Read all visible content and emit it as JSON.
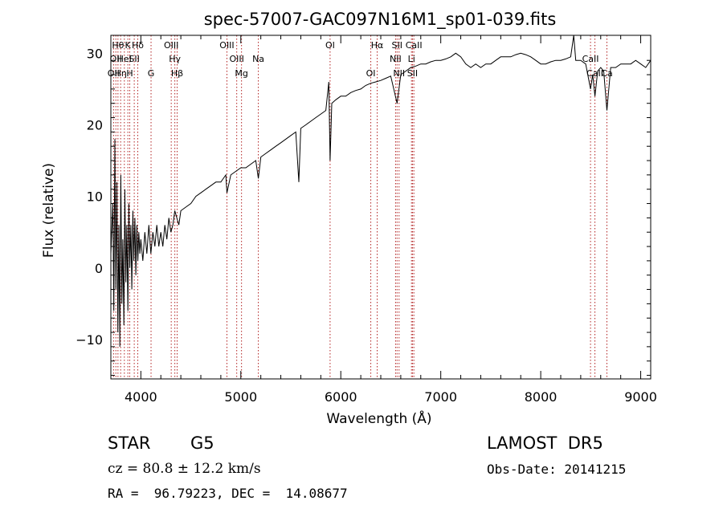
{
  "chart_data": {
    "type": "line",
    "title": "spec-57007-GAC097N16M1_sp01-039.fits",
    "xlabel": "Wavelength (Å)",
    "ylabel": "Flux (relative)",
    "xlim": [
      3700,
      9100
    ],
    "ylim": [
      -15.5,
      32.5
    ],
    "xticks": [
      4000,
      5000,
      6000,
      7000,
      8000,
      9000
    ],
    "yticks": [
      -10,
      0,
      10,
      20,
      30
    ],
    "grid": false,
    "colors": {
      "line": "#000000",
      "marker": "#b22222"
    },
    "series": [
      {
        "points": [
          [
            3700,
            2
          ],
          [
            3720,
            9
          ],
          [
            3730,
            -6
          ],
          [
            3740,
            18
          ],
          [
            3750,
            -3
          ],
          [
            3760,
            12
          ],
          [
            3770,
            -9
          ],
          [
            3780,
            6
          ],
          [
            3790,
            -11
          ],
          [
            3800,
            13
          ],
          [
            3810,
            -5
          ],
          [
            3820,
            4
          ],
          [
            3830,
            -8
          ],
          [
            3840,
            11
          ],
          [
            3850,
            -2
          ],
          [
            3860,
            6
          ],
          [
            3870,
            -6
          ],
          [
            3880,
            9
          ],
          [
            3890,
            0
          ],
          [
            3900,
            6
          ],
          [
            3910,
            -3
          ],
          [
            3920,
            8
          ],
          [
            3930,
            1
          ],
          [
            3940,
            7
          ],
          [
            3950,
            -1
          ],
          [
            3960,
            6
          ],
          [
            3970,
            1
          ],
          [
            3980,
            5
          ],
          [
            3990,
            2
          ],
          [
            4000,
            4
          ],
          [
            4020,
            1
          ],
          [
            4040,
            5
          ],
          [
            4060,
            2
          ],
          [
            4080,
            6
          ],
          [
            4100,
            2
          ],
          [
            4120,
            5
          ],
          [
            4140,
            3
          ],
          [
            4160,
            6
          ],
          [
            4180,
            3
          ],
          [
            4200,
            5
          ],
          [
            4220,
            3
          ],
          [
            4240,
            6
          ],
          [
            4260,
            4
          ],
          [
            4280,
            7
          ],
          [
            4300,
            5
          ],
          [
            4320,
            6
          ],
          [
            4340,
            8
          ],
          [
            4360,
            7
          ],
          [
            4380,
            6
          ],
          [
            4400,
            8
          ],
          [
            4450,
            8.5
          ],
          [
            4500,
            9
          ],
          [
            4550,
            10
          ],
          [
            4600,
            10.5
          ],
          [
            4650,
            11
          ],
          [
            4700,
            11.5
          ],
          [
            4750,
            12
          ],
          [
            4800,
            12
          ],
          [
            4850,
            13
          ],
          [
            4861,
            10.5
          ],
          [
            4900,
            13
          ],
          [
            4950,
            13.5
          ],
          [
            5000,
            14
          ],
          [
            5050,
            14
          ],
          [
            5100,
            14.5
          ],
          [
            5150,
            15
          ],
          [
            5175,
            12.5
          ],
          [
            5200,
            15.5
          ],
          [
            5250,
            16
          ],
          [
            5300,
            16.5
          ],
          [
            5350,
            17
          ],
          [
            5400,
            17.5
          ],
          [
            5450,
            18
          ],
          [
            5500,
            18.5
          ],
          [
            5550,
            19
          ],
          [
            5580,
            12
          ],
          [
            5600,
            19.5
          ],
          [
            5650,
            20
          ],
          [
            5700,
            20.5
          ],
          [
            5750,
            21
          ],
          [
            5800,
            21.5
          ],
          [
            5850,
            22
          ],
          [
            5880,
            26
          ],
          [
            5893,
            15
          ],
          [
            5910,
            23
          ],
          [
            5950,
            23.5
          ],
          [
            6000,
            24
          ],
          [
            6050,
            24
          ],
          [
            6100,
            24.5
          ],
          [
            6150,
            24.8
          ],
          [
            6200,
            25
          ],
          [
            6250,
            25.5
          ],
          [
            6300,
            25.8
          ],
          [
            6350,
            26
          ],
          [
            6400,
            26.2
          ],
          [
            6450,
            26.5
          ],
          [
            6500,
            26.8
          ],
          [
            6563,
            23
          ],
          [
            6600,
            27
          ],
          [
            6650,
            27.5
          ],
          [
            6700,
            28
          ],
          [
            6750,
            28.2
          ],
          [
            6800,
            28.5
          ],
          [
            6850,
            28.5
          ],
          [
            6900,
            28.8
          ],
          [
            6950,
            29
          ],
          [
            7000,
            29
          ],
          [
            7050,
            29.2
          ],
          [
            7100,
            29.5
          ],
          [
            7150,
            30
          ],
          [
            7200,
            29.5
          ],
          [
            7250,
            28.5
          ],
          [
            7300,
            28
          ],
          [
            7350,
            28.5
          ],
          [
            7400,
            28
          ],
          [
            7450,
            28.5
          ],
          [
            7500,
            28.5
          ],
          [
            7550,
            29
          ],
          [
            7600,
            29.5
          ],
          [
            7650,
            29.5
          ],
          [
            7700,
            29.5
          ],
          [
            7750,
            29.8
          ],
          [
            7800,
            30
          ],
          [
            7850,
            29.8
          ],
          [
            7900,
            29.5
          ],
          [
            7950,
            29
          ],
          [
            8000,
            28.5
          ],
          [
            8050,
            28.5
          ],
          [
            8100,
            28.8
          ],
          [
            8150,
            29
          ],
          [
            8200,
            29
          ],
          [
            8250,
            29.2
          ],
          [
            8300,
            29.5
          ],
          [
            8330,
            32.5
          ],
          [
            8350,
            29
          ],
          [
            8400,
            29
          ],
          [
            8450,
            28.5
          ],
          [
            8498,
            25
          ],
          [
            8520,
            27
          ],
          [
            8542,
            24
          ],
          [
            8570,
            27.5
          ],
          [
            8600,
            28
          ],
          [
            8630,
            27.5
          ],
          [
            8662,
            22
          ],
          [
            8700,
            28
          ],
          [
            8750,
            28
          ],
          [
            8800,
            28.5
          ],
          [
            8850,
            28.5
          ],
          [
            8900,
            28.5
          ],
          [
            8950,
            29
          ],
          [
            9000,
            28.5
          ],
          [
            9050,
            28
          ],
          [
            9100,
            29
          ]
        ]
      }
    ],
    "line_markers": [
      {
        "w": 3727,
        "row": 2,
        "label": "OII"
      },
      {
        "w": 3750,
        "row": 1,
        "label": "OII"
      },
      {
        "w": 3771,
        "row": 0,
        "label": "Hθ"
      },
      {
        "w": 3798,
        "row": 2,
        "label": "Hη"
      },
      {
        "w": 3835,
        "row": 1,
        "label": "HeI"
      },
      {
        "w": 3870,
        "row": 0,
        "label": "K"
      },
      {
        "w": 3889,
        "row": 2,
        "label": "H"
      },
      {
        "w": 3934,
        "row": 1,
        "label": "SII"
      },
      {
        "w": 3969,
        "row": 0,
        "label": "Hδ"
      },
      {
        "w": 4102,
        "row": 2,
        "label": "G"
      },
      {
        "w": 4304,
        "row": 0,
        "label": "OIII"
      },
      {
        "w": 4340,
        "row": 1,
        "label": "Hγ"
      },
      {
        "w": 4363,
        "row": 2,
        "label": "Hβ"
      },
      {
        "w": 4861,
        "row": 0,
        "label": "OIII"
      },
      {
        "w": 4959,
        "row": 1,
        "label": "OIII"
      },
      {
        "w": 5007,
        "row": 2,
        "label": "Mg"
      },
      {
        "w": 5175,
        "row": 1,
        "label": "Na"
      },
      {
        "w": 5893,
        "row": 0,
        "label": "OI"
      },
      {
        "w": 6300,
        "row": 2,
        "label": "OI"
      },
      {
        "w": 6364,
        "row": 0,
        "label": "Hα"
      },
      {
        "w": 6548,
        "row": 1,
        "label": "NII"
      },
      {
        "w": 6563,
        "row": 0,
        "label": "SII"
      },
      {
        "w": 6583,
        "row": 2,
        "label": "NII"
      },
      {
        "w": 6707,
        "row": 1,
        "label": "Li"
      },
      {
        "w": 6717,
        "row": 2,
        "label": "SII"
      },
      {
        "w": 6731,
        "row": 0,
        "label": "CaII"
      },
      {
        "w": 8498,
        "row": 1,
        "label": "CaII"
      },
      {
        "w": 8542,
        "row": 2,
        "label": "CaII"
      },
      {
        "w": 8662,
        "row": 2,
        "label": "Ca"
      }
    ]
  },
  "info": {
    "class_label": "STAR",
    "subclass": "G5",
    "survey": "LAMOST  DR5",
    "cz": "cz = 80.8 ± 12.2 km/s",
    "obs_date": "Obs-Date: 20141215",
    "coords": "RA =  96.79223, DEC =  14.08677"
  }
}
